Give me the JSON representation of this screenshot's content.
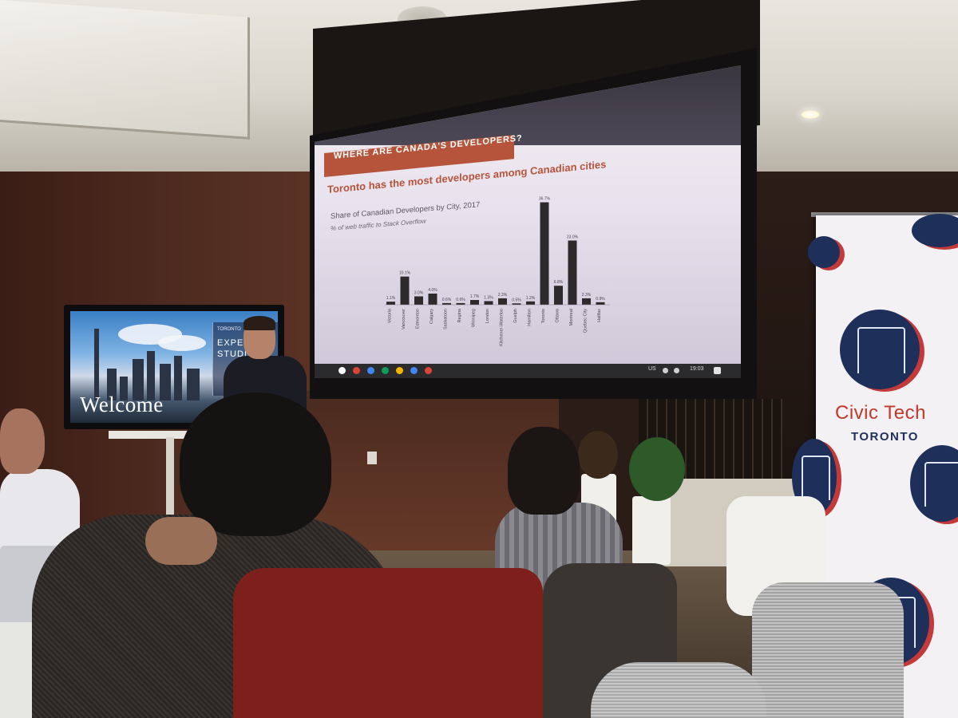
{
  "slide": {
    "banner": "WHERE ARE CANADA'S DEVELOPERS?",
    "title": "Toronto has the most developers among Canadian cities",
    "subtitle": "Share of Canadian Developers by City, 2017",
    "note": "% of web traffic to Stack Overflow",
    "taskbar": {
      "locale": "US",
      "time": "19:03"
    },
    "accent_color": "#b5543a"
  },
  "chart_data": {
    "type": "bar",
    "title": "Share of Canadian Developers by City, 2017",
    "ylabel": "% of web traffic to Stack Overflow",
    "categories": [
      "Victoria",
      "Vancouver",
      "Edmonton",
      "Calgary",
      "Saskatoon",
      "Regina",
      "Winnipeg",
      "London",
      "Kitchener-Waterloo",
      "Guelph",
      "Hamilton",
      "Toronto",
      "Ottawa",
      "Montreal",
      "Quebec City",
      "Halifax"
    ],
    "values": [
      1.1,
      10.1,
      3.0,
      4.0,
      0.6,
      0.6,
      1.7,
      1.3,
      2.3,
      0.5,
      1.2,
      36.7,
      6.8,
      23.0,
      2.3,
      0.9
    ],
    "data_labels": [
      "1.1%",
      "10.1%",
      "3.0%",
      "4.0%",
      "0.6%",
      "0.6%",
      "1.7%",
      "1.3%",
      "2.3%",
      "0.5%",
      "1.2%",
      "36.7%",
      "6.8%",
      "23.0%",
      "2.3%",
      "0.9%"
    ],
    "ylim": [
      0,
      40
    ],
    "bar_color": "#2d2a2c"
  },
  "tv": {
    "welcome": "Welcome",
    "small": "TORONTO",
    "line1": "EXPER",
    "line2": "STUDIO"
  },
  "banner": {
    "line1": "Civic Tech",
    "line2": "TORONTO",
    "navy": "#1e2f5a",
    "red": "#c0392b"
  }
}
